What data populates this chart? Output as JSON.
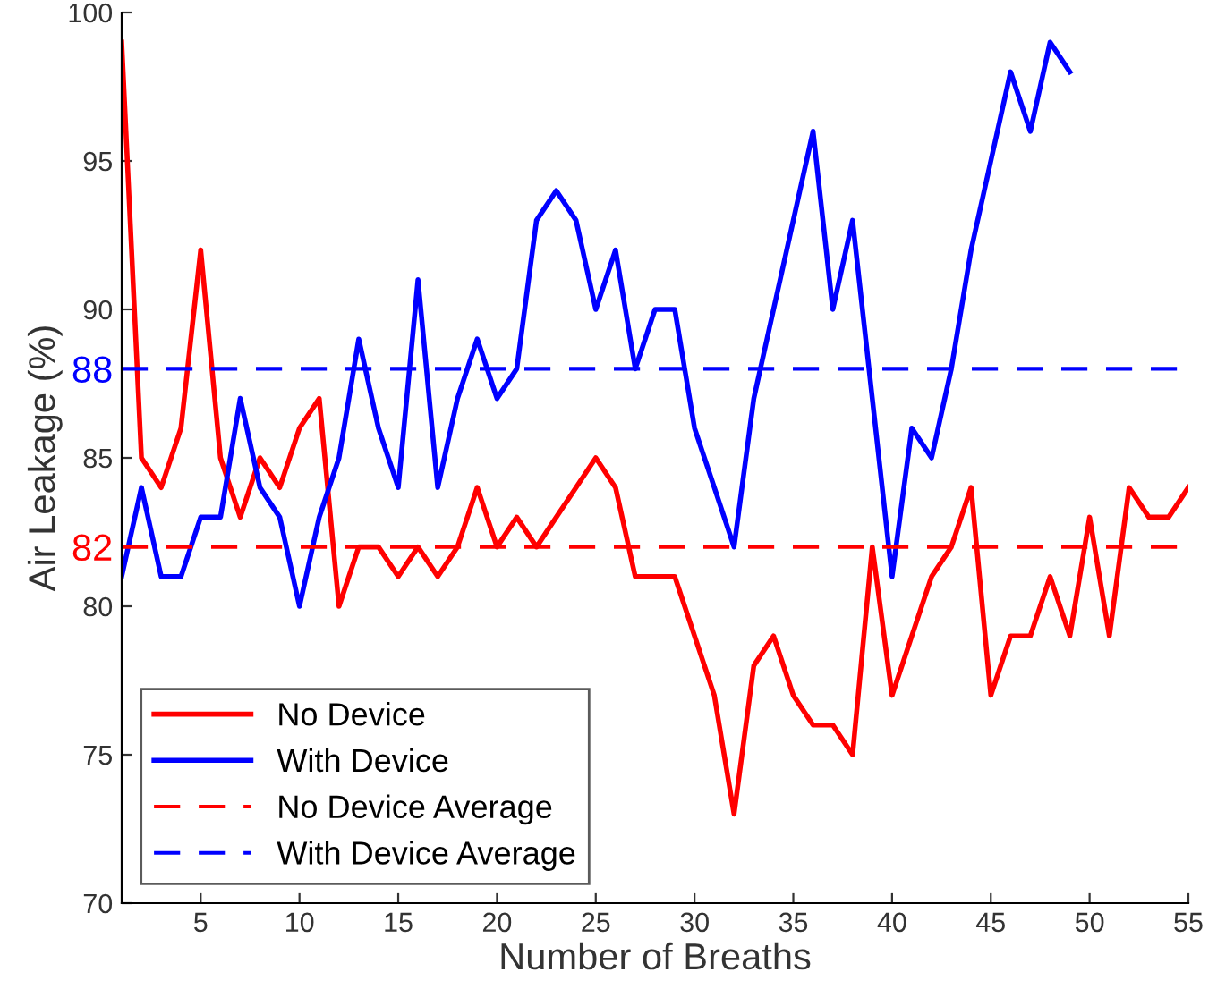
{
  "chart_data": {
    "type": "line",
    "xlabel": "Number of Breaths",
    "ylabel": "Air Leakage (%)",
    "xlim": [
      1,
      55
    ],
    "xticks": [
      5,
      10,
      15,
      20,
      25,
      30,
      35,
      40,
      45,
      50,
      55
    ],
    "ylim": [
      70,
      100
    ],
    "yticks": [
      70,
      75,
      80,
      82,
      85,
      88,
      90,
      95,
      100
    ],
    "x": [
      1,
      2,
      3,
      4,
      5,
      6,
      7,
      8,
      9,
      10,
      11,
      12,
      13,
      14,
      15,
      16,
      17,
      18,
      19,
      20,
      21,
      22,
      23,
      24,
      25,
      26,
      27,
      28,
      29,
      30,
      31,
      32,
      33,
      34,
      35,
      36,
      37,
      38,
      39,
      40,
      41,
      42,
      43,
      44,
      45,
      46,
      47,
      48,
      49,
      50,
      51,
      52,
      53,
      54,
      55
    ],
    "series": [
      {
        "name": "No Device",
        "color": "#ff0000",
        "values": [
          99,
          85,
          84,
          86,
          92,
          85,
          83,
          85,
          84,
          86,
          87,
          80,
          82,
          82,
          81,
          82,
          81,
          82,
          84,
          82,
          83,
          82,
          83,
          84,
          85,
          84,
          81,
          81,
          81,
          79,
          77,
          73,
          78,
          79,
          77,
          76,
          76,
          75,
          82,
          77,
          79,
          81,
          82,
          84,
          77,
          79,
          79,
          81,
          79,
          83,
          79,
          84,
          83,
          83,
          84
        ]
      },
      {
        "name": "With Device",
        "color": "#0000ff",
        "values": [
          81,
          84,
          81,
          81,
          83,
          83,
          87,
          84,
          83,
          80,
          83,
          85,
          89,
          86,
          84,
          91,
          84,
          87,
          89,
          87,
          88,
          93,
          94,
          93,
          90,
          92,
          88,
          90,
          90,
          86,
          84,
          82,
          87,
          90,
          93,
          96,
          90,
          93,
          87,
          81,
          86,
          85,
          88,
          92,
          95,
          98,
          96,
          99,
          98,
          null,
          null,
          null,
          null,
          null,
          null
        ]
      }
    ],
    "ref_lines": [
      {
        "axis": "y",
        "value": 82,
        "label": "No Device Average",
        "color": "#ff0000",
        "line_style": "dashed"
      },
      {
        "axis": "y",
        "value": 88,
        "label": "With Device Average",
        "color": "#0000ff",
        "line_style": "dashed"
      }
    ],
    "legend": "bottom left",
    "grid": false,
    "marker": "none",
    "line_style": "solid"
  }
}
